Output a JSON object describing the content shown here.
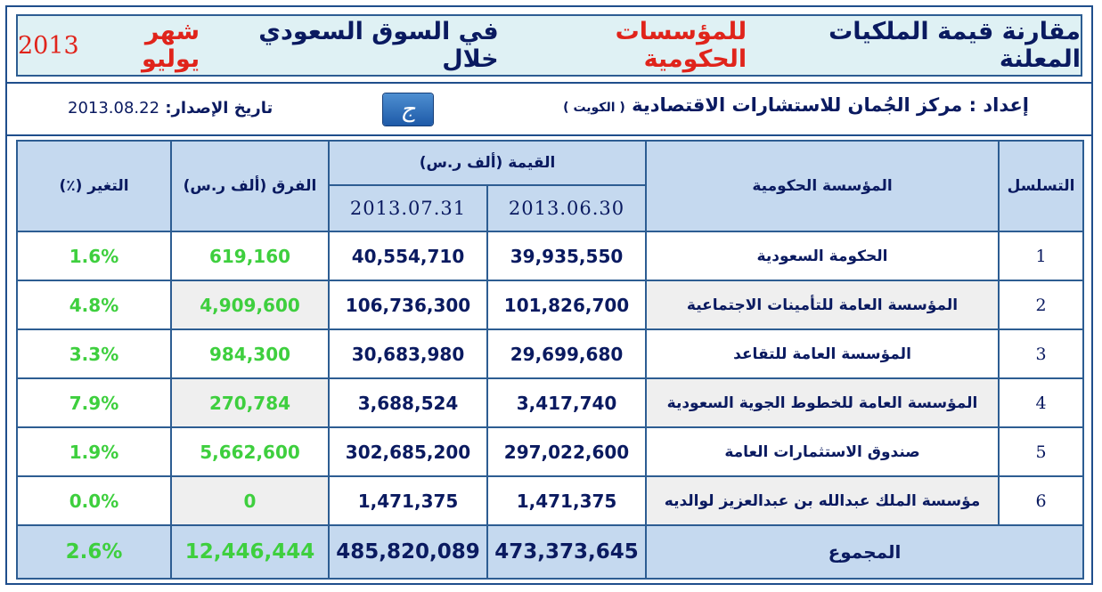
{
  "title": {
    "part1": "مقارنة قيمة الملكيات المعلنة",
    "part2": "للمؤسسات الحكومية",
    "part3": "في السوق السعودي خلال",
    "part4": "شهر يوليو",
    "year": "2013"
  },
  "info": {
    "prepared_label": "إعداد",
    "prepared_by": "مركز الجُمان للاستشارات الاقتصادية",
    "country": "( الكويت )",
    "issue_label": "تاريخ الإصدار:",
    "issue_date": "2013.08.22",
    "logo_glyph": "ج"
  },
  "headers": {
    "seq": "التسلسل",
    "entity": "المؤسسة الحكومية",
    "value": "القيمة (ألف ر.س)",
    "date1": "2013.06.30",
    "date2": "2013.07.31",
    "diff": "الفرق (ألف ر.س)",
    "change": "التغير (٪)"
  },
  "rows": [
    {
      "seq": "1",
      "name": "الحكومة السعودية",
      "v1": "39,935,550",
      "v2": "40,554,710",
      "diff": "619,160",
      "pct": "1.6%"
    },
    {
      "seq": "2",
      "name": "المؤسسة العامة للتأمينات الاجتماعية",
      "v1": "101,826,700",
      "v2": "106,736,300",
      "diff": "4,909,600",
      "pct": "4.8%"
    },
    {
      "seq": "3",
      "name": "المؤسسة العامة للتقاعد",
      "v1": "29,699,680",
      "v2": "30,683,980",
      "diff": "984,300",
      "pct": "3.3%"
    },
    {
      "seq": "4",
      "name": "المؤسسة العامة للخطوط الجوية السعودية",
      "v1": "3,417,740",
      "v2": "3,688,524",
      "diff": "270,784",
      "pct": "7.9%"
    },
    {
      "seq": "5",
      "name": "صندوق الاستثمارات العامة",
      "v1": "297,022,600",
      "v2": "302,685,200",
      "diff": "5,662,600",
      "pct": "1.9%"
    },
    {
      "seq": "6",
      "name": "مؤسسة الملك عبدالله بن عبدالعزيز لوالديه",
      "v1": "1,471,375",
      "v2": "1,471,375",
      "diff": "0",
      "pct": "0.0%"
    }
  ],
  "total": {
    "label": "المجموع",
    "v1": "473,373,645",
    "v2": "485,820,089",
    "diff": "12,446,444",
    "pct": "2.6%"
  },
  "colors": {
    "header_fill": "#c5d9ef",
    "title_fill": "#dff1f4",
    "border": "#2d5d92",
    "positive": "#3ecf3e",
    "highlight": "#e0241b"
  }
}
